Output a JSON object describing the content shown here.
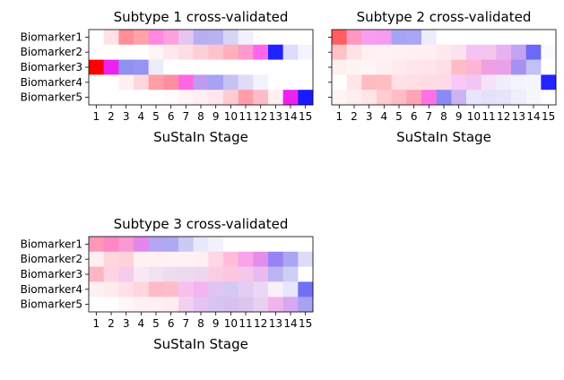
{
  "chart_data": [
    {
      "type": "heatmap",
      "title": "Subtype 1 cross-validated",
      "xlabel": "SuStaIn Stage",
      "ylabel": "",
      "x_ticks": [
        "1",
        "2",
        "3",
        "4",
        "5",
        "6",
        "7",
        "8",
        "9",
        "10",
        "11",
        "12",
        "13",
        "14",
        "15"
      ],
      "y_ticks": [
        "Biomarker1",
        "Biomarker2",
        "Biomarker3",
        "Biomarker4",
        "Biomarker5"
      ],
      "show_y_tick_labels": true,
      "cells": [
        [
          "#ffffff",
          "#ffe2e8",
          "#ff8e96",
          "#ffa3a8",
          "#ff88e0",
          "#ffa0de",
          "#e8c4f0",
          "#b6b0f2",
          "#b8b2f0",
          "#d8d4f6",
          "#f2f0fc",
          "#ffffff",
          "#ffffff",
          "#ffffff",
          "#ffffff"
        ],
        [
          "#ffffff",
          "#ffffff",
          "#ffffff",
          "#ffffff",
          "#fff4f6",
          "#ffe8ee",
          "#ffdde4",
          "#ffcfd8",
          "#ffc2cc",
          "#ffb0ba",
          "#ff9aca",
          "#ff66f0",
          "#2222ff",
          "#dcdcfc",
          "#f4f4fe"
        ],
        [
          "#ff0000",
          "#ee22ee",
          "#9090f0",
          "#9494f2",
          "#ececfc",
          "#ffffff",
          "#ffffff",
          "#ffffff",
          "#ffffff",
          "#ffffff",
          "#ffffff",
          "#ffffff",
          "#ffffff",
          "#ffffff",
          "#ffffff"
        ],
        [
          "#ffffff",
          "#ffffff",
          "#fff0f2",
          "#ffd6dc",
          "#ff9ea4",
          "#ff8ea0",
          "#ff66e6",
          "#c09af0",
          "#a8a2f4",
          "#c6c2f4",
          "#dedcf8",
          "#f2f2fe",
          "#ffffff",
          "#ffffff",
          "#ffffff"
        ],
        [
          "#ffffff",
          "#ffffff",
          "#ffffff",
          "#ffffff",
          "#ffffff",
          "#fffafb",
          "#fff4f6",
          "#ffeef2",
          "#ffe6ec",
          "#ffccd4",
          "#ff9ea8",
          "#ffbcc8",
          "#ffeef2",
          "#ee22ee",
          "#1a1aff"
        ]
      ]
    },
    {
      "type": "heatmap",
      "title": "Subtype 2 cross-validated",
      "xlabel": "SuStaIn Stage",
      "ylabel": "",
      "x_ticks": [
        "1",
        "2",
        "3",
        "4",
        "5",
        "6",
        "7",
        "8",
        "9",
        "10",
        "11",
        "12",
        "13",
        "14",
        "15"
      ],
      "y_ticks": [
        "Biomarker1",
        "Biomarker2",
        "Biomarker3",
        "Biomarker4",
        "Biomarker5"
      ],
      "show_y_tick_labels": false,
      "cells": [
        [
          "#ff5e62",
          "#ff98c0",
          "#f89ef0",
          "#f49cee",
          "#a8a4f4",
          "#aaa6f2",
          "#ececfc",
          "#ffffff",
          "#ffffff",
          "#ffffff",
          "#ffffff",
          "#ffffff",
          "#ffffff",
          "#ffffff",
          "#ffffff"
        ],
        [
          "#ffc2c6",
          "#ffe2e6",
          "#fff0f2",
          "#fff2f4",
          "#fff0f2",
          "#ffeef2",
          "#ffeef2",
          "#ffe8ee",
          "#fce2f0",
          "#f6c2f4",
          "#f4c6ee",
          "#e6b2f4",
          "#c4a2f2",
          "#6a6af6",
          "#fafaff"
        ],
        [
          "#fff0f0",
          "#fff4f4",
          "#fff4f6",
          "#ffeef2",
          "#ffeaf0",
          "#ffe6ec",
          "#ffe4ea",
          "#ffdee6",
          "#ffbcc4",
          "#fcb6d4",
          "#f0a0e2",
          "#e8a2e6",
          "#a890f2",
          "#c2c0f6",
          "#ffffff"
        ],
        [
          "#ffffff",
          "#ffe4e8",
          "#ffbcc0",
          "#ffbec2",
          "#ffe0e6",
          "#ffdee4",
          "#ffdce4",
          "#ffdae6",
          "#f8c8f8",
          "#f4c4f4",
          "#f6e2f8",
          "#f0eefc",
          "#f4f4fe",
          "#f6f6fe",
          "#2424ff"
        ],
        [
          "#fff4f4",
          "#ffeef0",
          "#ffe4e8",
          "#ffccd2",
          "#ffbcc4",
          "#ffa4b2",
          "#ff72e6",
          "#8a8af4",
          "#cab4f4",
          "#e8e6fc",
          "#e4e2fa",
          "#e6e4fa",
          "#eeeefc",
          "#f6f6fe",
          "#ffffff"
        ]
      ]
    },
    {
      "type": "heatmap",
      "title": "Subtype 3 cross-validated",
      "xlabel": "SuStaIn Stage",
      "ylabel": "",
      "x_ticks": [
        "1",
        "2",
        "3",
        "4",
        "5",
        "6",
        "7",
        "8",
        "9",
        "10",
        "11",
        "12",
        "13",
        "14",
        "15"
      ],
      "y_ticks": [
        "Biomarker1",
        "Biomarker2",
        "Biomarker3",
        "Biomarker4",
        "Biomarker5"
      ],
      "show_y_tick_labels": true,
      "cells": [
        [
          "#ff98b6",
          "#ff86c4",
          "#f898d4",
          "#e486ec",
          "#b6a4f4",
          "#aeaaf2",
          "#cacaf4",
          "#e8e8fc",
          "#f2f2fe",
          "#ffffff",
          "#ffffff",
          "#ffffff",
          "#ffffff",
          "#ffffff",
          "#ffffff"
        ],
        [
          "#ffeef2",
          "#ffd6de",
          "#ffd2da",
          "#fff0f4",
          "#fff0f4",
          "#fff2f4",
          "#fff2f4",
          "#ffeef2",
          "#ffd6e4",
          "#ffbcdc",
          "#f8a4e8",
          "#e48eec",
          "#9a82f2",
          "#aaa6f2",
          "#dcdcfa"
        ],
        [
          "#ffb4c2",
          "#ffd4e0",
          "#f6ccee",
          "#fae6f4",
          "#f2e2f0",
          "#eedcee",
          "#eedaee",
          "#eed6ee",
          "#fccce4",
          "#fcc6e0",
          "#f4c8ec",
          "#e8bcf0",
          "#bcb4f4",
          "#cecef6",
          "#ffffff"
        ],
        [
          "#fff0f2",
          "#ffeaee",
          "#ffe0e6",
          "#ffd6de",
          "#ffbac8",
          "#ffbcca",
          "#f8c0ee",
          "#f4b4f2",
          "#dec6f4",
          "#d6c8f2",
          "#e4ccf2",
          "#ecd8f4",
          "#fbf0fa",
          "#e6e6fc",
          "#7070f4"
        ],
        [
          "#ffffff",
          "#ffffff",
          "#fff6f8",
          "#fff0f4",
          "#fff0f4",
          "#ffecf2",
          "#f4d0f0",
          "#e4c4f2",
          "#d8c4f0",
          "#d8c0f0",
          "#dcc6ee",
          "#e8d0f2",
          "#f2b4ec",
          "#d8a8f2",
          "#a6a2f4"
        ]
      ]
    }
  ]
}
